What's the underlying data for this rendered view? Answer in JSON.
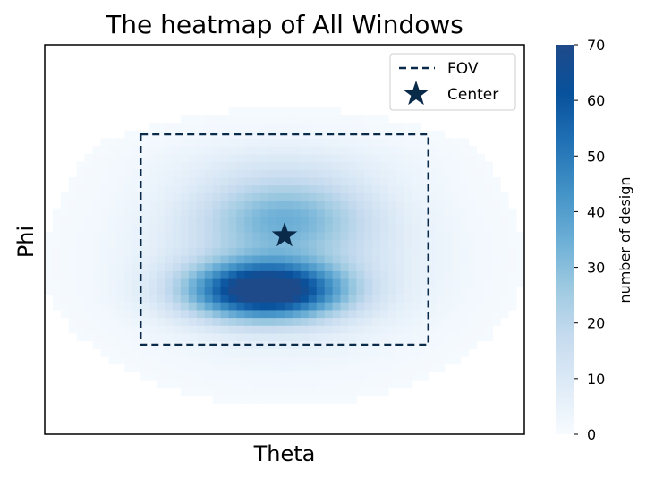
{
  "chart_data": {
    "type": "heatmap",
    "title": "The heatmap of All Windows",
    "xlabel": "Theta",
    "ylabel": "Phi",
    "x_ticks": [],
    "y_ticks": [],
    "colormap": "Blues",
    "colorbar": {
      "label": "number of design",
      "min": 0,
      "max": 70,
      "ticks": [
        0,
        10,
        20,
        30,
        40,
        50,
        60,
        70
      ]
    },
    "data_extent": {
      "theta": [
        0,
        1
      ],
      "phi": [
        0,
        1
      ]
    },
    "fov": {
      "label": "FOV",
      "theta_range": [
        0.2,
        0.8
      ],
      "phi_range": [
        0.23,
        0.77
      ],
      "style": "dashed",
      "color": "#0a2a4a"
    },
    "center": {
      "label": "Center",
      "theta": 0.5,
      "phi": 0.51,
      "marker": "star",
      "color": "#0a2a4a"
    },
    "blobs": [
      {
        "theta": 0.46,
        "phi": 0.37,
        "spread_theta": 0.11,
        "spread_phi": 0.05,
        "peak": 70
      },
      {
        "theta": 0.5,
        "phi": 0.56,
        "spread_theta": 0.12,
        "spread_phi": 0.07,
        "peak": 24
      },
      {
        "theta": 0.5,
        "phi": 0.45,
        "spread_theta": 0.2,
        "spread_phi": 0.15,
        "peak": 14
      },
      {
        "theta": 0.5,
        "phi": 0.7,
        "spread_theta": 0.18,
        "spread_phi": 0.05,
        "peak": 4
      }
    ],
    "legend": {
      "position": "top-right",
      "entries": [
        "FOV",
        "Center"
      ]
    },
    "grid": false
  }
}
